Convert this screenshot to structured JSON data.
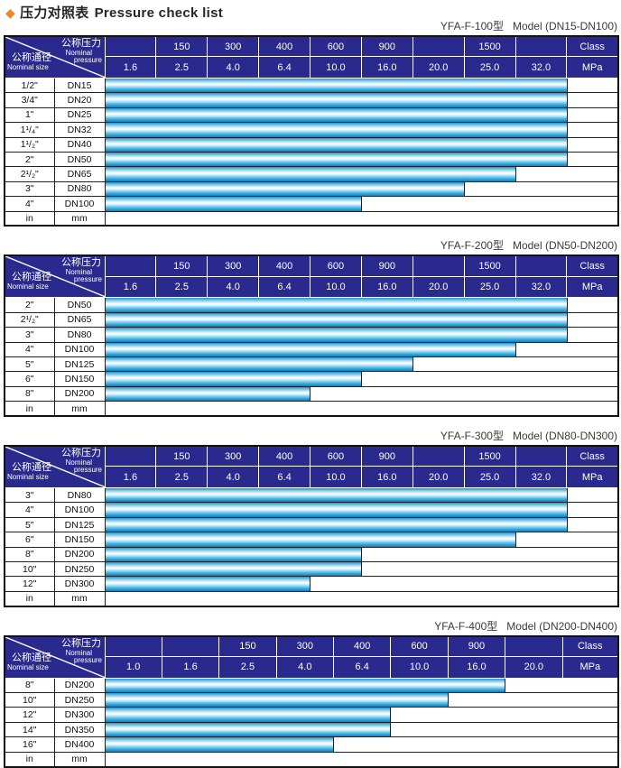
{
  "title": {
    "bullet": "◆",
    "zh": "压力对照表",
    "en": "Pressure check list"
  },
  "corner": {
    "pressure_zh": "公称压力",
    "pressure_en1": "Nominal",
    "pressure_en2": "pressure",
    "size_zh": "公称通径",
    "size_en": "Nominal size"
  },
  "colors": {
    "navy": "#29298e",
    "orange": "#ee8a1c",
    "title": "#262626",
    "bar_main": "#29a9e1",
    "bar_highlight": "#ffffff",
    "bar_deep": "#1581b4",
    "border_dark": "#222222"
  },
  "tables": [
    {
      "model": "YFA-F-100型",
      "range": "Model (DN15-DN100)",
      "class_row": [
        "",
        "150",
        "300",
        "400",
        "600",
        "900",
        "",
        "1500",
        ""
      ],
      "class_label": "Class",
      "mpa_row": [
        "1.6",
        "2.5",
        "4.0",
        "6.4",
        "10.0",
        "16.0",
        "20.0",
        "25.0",
        "32.0"
      ],
      "mpa_label": "MPa",
      "rows": [
        {
          "size": "1/2\"",
          "dn": "DN15",
          "max_mpa": "32.0"
        },
        {
          "size": "3/4\"",
          "dn": "DN20",
          "max_mpa": "32.0"
        },
        {
          "size": "1\"",
          "dn": "DN25",
          "max_mpa": "32.0"
        },
        {
          "size": "1¹/₄\"",
          "dn": "DN32",
          "max_mpa": "32.0"
        },
        {
          "size": "1¹/₂\"",
          "dn": "DN40",
          "max_mpa": "32.0"
        },
        {
          "size": "2\"",
          "dn": "DN50",
          "max_mpa": "32.0"
        },
        {
          "size": "2¹/₂\"",
          "dn": "DN65",
          "max_mpa": "25.0"
        },
        {
          "size": "3\"",
          "dn": "DN80",
          "max_mpa": "20.0"
        },
        {
          "size": "4\"",
          "dn": "DN100",
          "max_mpa": "10.0"
        }
      ],
      "unit_row": {
        "size": "in",
        "dn": "mm"
      }
    },
    {
      "model": "YFA-F-200型",
      "range": "Model (DN50-DN200)",
      "class_row": [
        "",
        "150",
        "300",
        "400",
        "600",
        "900",
        "",
        "1500",
        ""
      ],
      "class_label": "Class",
      "mpa_row": [
        "1.6",
        "2.5",
        "4.0",
        "6.4",
        "10.0",
        "16.0",
        "20.0",
        "25.0",
        "32.0"
      ],
      "mpa_label": "MPa",
      "rows": [
        {
          "size": "2\"",
          "dn": "DN50",
          "max_mpa": "32.0"
        },
        {
          "size": "2¹/₂\"",
          "dn": "DN65",
          "max_mpa": "32.0"
        },
        {
          "size": "3\"",
          "dn": "DN80",
          "max_mpa": "32.0"
        },
        {
          "size": "4\"",
          "dn": "DN100",
          "max_mpa": "25.0"
        },
        {
          "size": "5\"",
          "dn": "DN125",
          "max_mpa": "16.0"
        },
        {
          "size": "6\"",
          "dn": "DN150",
          "max_mpa": "10.0"
        },
        {
          "size": "8\"",
          "dn": "DN200",
          "max_mpa": "6.4"
        }
      ],
      "unit_row": {
        "size": "in",
        "dn": "mm"
      }
    },
    {
      "model": "YFA-F-300型",
      "range": "Model (DN80-DN300)",
      "class_row": [
        "",
        "150",
        "300",
        "400",
        "600",
        "900",
        "",
        "1500",
        ""
      ],
      "class_label": "Class",
      "mpa_row": [
        "1.6",
        "2.5",
        "4.0",
        "6.4",
        "10.0",
        "16.0",
        "20.0",
        "25.0",
        "32.0"
      ],
      "mpa_label": "MPa",
      "rows": [
        {
          "size": "3\"",
          "dn": "DN80",
          "max_mpa": "32.0"
        },
        {
          "size": "4\"",
          "dn": "DN100",
          "max_mpa": "32.0"
        },
        {
          "size": "5\"",
          "dn": "DN125",
          "max_mpa": "32.0"
        },
        {
          "size": "6\"",
          "dn": "DN150",
          "max_mpa": "25.0"
        },
        {
          "size": "8\"",
          "dn": "DN200",
          "max_mpa": "10.0"
        },
        {
          "size": "10\"",
          "dn": "DN250",
          "max_mpa": "10.0"
        },
        {
          "size": "12\"",
          "dn": "DN300",
          "max_mpa": "6.4"
        }
      ],
      "unit_row": {
        "size": "in",
        "dn": "mm"
      }
    },
    {
      "model": "YFA-F-400型",
      "range": "Model (DN200-DN400)",
      "class_row": [
        "",
        "",
        "150",
        "300",
        "400",
        "600",
        "900",
        ""
      ],
      "class_label": "Class",
      "mpa_row": [
        "1.0",
        "1.6",
        "2.5",
        "4.0",
        "6.4",
        "10.0",
        "16.0",
        "20.0"
      ],
      "mpa_label": "MPa",
      "rows": [
        {
          "size": "8\"",
          "dn": "DN200",
          "max_mpa": "16.0"
        },
        {
          "size": "10\"",
          "dn": "DN250",
          "max_mpa": "10.0"
        },
        {
          "size": "12\"",
          "dn": "DN300",
          "max_mpa": "6.4"
        },
        {
          "size": "14\"",
          "dn": "DN350",
          "max_mpa": "6.4"
        },
        {
          "size": "16\"",
          "dn": "DN400",
          "max_mpa": "4.0"
        }
      ],
      "unit_row": {
        "size": "in",
        "dn": "mm"
      }
    }
  ],
  "chart_data": [
    {
      "type": "bar",
      "orientation": "horizontal",
      "title": "YFA-F-100型 Model (DN15-DN100)",
      "categories": [
        "DN15",
        "DN20",
        "DN25",
        "DN32",
        "DN40",
        "DN50",
        "DN65",
        "DN80",
        "DN100"
      ],
      "values": [
        32.0,
        32.0,
        32.0,
        32.0,
        32.0,
        32.0,
        25.0,
        20.0,
        10.0
      ],
      "xlabel": "MPa",
      "ylabel": "Nominal size",
      "x_ticks": [
        1.6,
        2.5,
        4.0,
        6.4,
        10.0,
        16.0,
        20.0,
        25.0,
        32.0
      ],
      "class_ticks": [
        150,
        300,
        400,
        600,
        900,
        1500
      ],
      "grid": true,
      "legend_position": "none"
    },
    {
      "type": "bar",
      "orientation": "horizontal",
      "title": "YFA-F-200型 Model (DN50-DN200)",
      "categories": [
        "DN50",
        "DN65",
        "DN80",
        "DN100",
        "DN125",
        "DN150",
        "DN200"
      ],
      "values": [
        32.0,
        32.0,
        32.0,
        25.0,
        16.0,
        10.0,
        6.4
      ],
      "xlabel": "MPa",
      "ylabel": "Nominal size",
      "x_ticks": [
        1.6,
        2.5,
        4.0,
        6.4,
        10.0,
        16.0,
        20.0,
        25.0,
        32.0
      ],
      "class_ticks": [
        150,
        300,
        400,
        600,
        900,
        1500
      ],
      "grid": true,
      "legend_position": "none"
    },
    {
      "type": "bar",
      "orientation": "horizontal",
      "title": "YFA-F-300型 Model (DN80-DN300)",
      "categories": [
        "DN80",
        "DN100",
        "DN125",
        "DN150",
        "DN200",
        "DN250",
        "DN300"
      ],
      "values": [
        32.0,
        32.0,
        32.0,
        25.0,
        10.0,
        10.0,
        6.4
      ],
      "xlabel": "MPa",
      "ylabel": "Nominal size",
      "x_ticks": [
        1.6,
        2.5,
        4.0,
        6.4,
        10.0,
        16.0,
        20.0,
        25.0,
        32.0
      ],
      "class_ticks": [
        150,
        300,
        400,
        600,
        900,
        1500
      ],
      "grid": true,
      "legend_position": "none"
    },
    {
      "type": "bar",
      "orientation": "horizontal",
      "title": "YFA-F-400型 Model (DN200-DN400)",
      "categories": [
        "DN200",
        "DN250",
        "DN300",
        "DN350",
        "DN400"
      ],
      "values": [
        16.0,
        10.0,
        6.4,
        6.4,
        4.0
      ],
      "xlabel": "MPa",
      "ylabel": "Nominal size",
      "x_ticks": [
        1.0,
        1.6,
        2.5,
        4.0,
        6.4,
        10.0,
        16.0,
        20.0
      ],
      "class_ticks": [
        150,
        300,
        400,
        600,
        900
      ],
      "grid": true,
      "legend_position": "none"
    }
  ]
}
